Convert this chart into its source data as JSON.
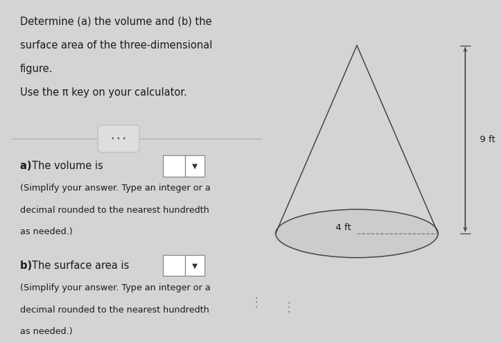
{
  "bg_color": "#d4d4d4",
  "left_bg": "#d8d8d8",
  "right_bg": "#d4d4d4",
  "title_text": "Determine (a) the volume and (b) the\nsurface area of the three-dimensional\nfigure.\nUse the π key on your calculator.",
  "part_a_label": "a) ",
  "part_a_rest": "The volume is",
  "part_a_sub": "(Simplify your answer. Type an integer or a\ndecimal rounded to the nearest hundredth\nas needed.)",
  "part_b_label": "b) ",
  "part_b_rest": "The surface area is",
  "part_b_sub": "(Simplify your answer. Type an integer or a\ndecimal rounded to the nearest hundredth\nas needed.)",
  "cone_label_r": "4 ft",
  "cone_label_h": "9 ft",
  "text_color": "#1a1a1a",
  "cone_color": "#444444",
  "cone_fill": "#cccccc"
}
